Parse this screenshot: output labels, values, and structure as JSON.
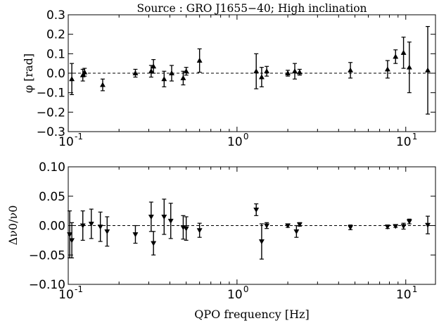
{
  "chart_data": [
    {
      "type": "scatter",
      "title": "Source$:$ GRO J1655$-$40; High inclination",
      "title_text": "Source : GRO J1655−40; High inclination",
      "ylabel": "φ [rad]",
      "xlabel": "",
      "x_scale": "log",
      "xlim": [
        0.1,
        15
      ],
      "ylim": [
        -0.3,
        0.3
      ],
      "x_ticks": [
        0.1,
        1,
        10
      ],
      "x_tick_labels": [
        "10",
        "10",
        "10"
      ],
      "x_tick_exponents": [
        "-1",
        "0",
        "1"
      ],
      "y_ticks": [
        -0.3,
        -0.2,
        -0.1,
        0.0,
        0.1,
        0.2,
        0.3
      ],
      "y_tick_labels": [
        "−0.3",
        "−0.2",
        "−0.1",
        "0.0",
        "0.1",
        "0.2",
        "0.3"
      ],
      "marker": "triangle-up",
      "reference_line": 0,
      "series": [
        {
          "points": [
            {
              "x": 0.105,
              "y": -0.03,
              "err": 0.08
            },
            {
              "x": 0.122,
              "y": -0.01,
              "err": 0.03
            },
            {
              "x": 0.125,
              "y": 0.005,
              "err": 0.02
            },
            {
              "x": 0.16,
              "y": -0.06,
              "err": 0.03
            },
            {
              "x": 0.25,
              "y": 0.0,
              "err": 0.02
            },
            {
              "x": 0.31,
              "y": 0.01,
              "err": 0.03
            },
            {
              "x": 0.32,
              "y": 0.035,
              "err": 0.035
            },
            {
              "x": 0.37,
              "y": -0.03,
              "err": 0.04
            },
            {
              "x": 0.41,
              "y": 0.0,
              "err": 0.04
            },
            {
              "x": 0.48,
              "y": -0.025,
              "err": 0.035
            },
            {
              "x": 0.5,
              "y": 0.01,
              "err": 0.02
            },
            {
              "x": 0.6,
              "y": 0.065,
              "err": 0.06
            },
            {
              "x": 1.3,
              "y": 0.01,
              "err": 0.09
            },
            {
              "x": 1.4,
              "y": -0.02,
              "err": 0.05
            },
            {
              "x": 1.5,
              "y": 0.01,
              "err": 0.025
            },
            {
              "x": 2.0,
              "y": 0.0,
              "err": 0.015
            },
            {
              "x": 2.2,
              "y": 0.01,
              "err": 0.04
            },
            {
              "x": 2.35,
              "y": 0.005,
              "err": 0.015
            },
            {
              "x": 4.7,
              "y": 0.015,
              "err": 0.04
            },
            {
              "x": 7.8,
              "y": 0.02,
              "err": 0.045
            },
            {
              "x": 8.7,
              "y": 0.085,
              "err": 0.035
            },
            {
              "x": 9.7,
              "y": 0.105,
              "err": 0.08
            },
            {
              "x": 10.5,
              "y": 0.03,
              "err": 0.13
            },
            {
              "x": 13.5,
              "y": 0.015,
              "err": 0.225
            }
          ]
        }
      ]
    },
    {
      "type": "scatter",
      "title": "",
      "ylabel": "Δν0/ν0",
      "xlabel": "QPO frequency [Hz]",
      "x_scale": "log",
      "xlim": [
        0.1,
        15
      ],
      "ylim": [
        -0.1,
        0.1
      ],
      "x_ticks": [
        0.1,
        1,
        10
      ],
      "x_tick_labels": [
        "10",
        "10",
        "10"
      ],
      "x_tick_exponents": [
        "-1",
        "0",
        "1"
      ],
      "y_ticks": [
        -0.1,
        -0.05,
        0.0,
        0.05,
        0.1
      ],
      "y_tick_labels": [
        "−0.10",
        "−0.05",
        "0.00",
        "0.05",
        "0.10"
      ],
      "marker": "triangle-down",
      "reference_line": 0,
      "series": [
        {
          "points": [
            {
              "x": 0.102,
              "y": -0.015,
              "err": 0.04
            },
            {
              "x": 0.105,
              "y": -0.025,
              "err": 0.03
            },
            {
              "x": 0.122,
              "y": 0.0,
              "err": 0.025
            },
            {
              "x": 0.137,
              "y": 0.003,
              "err": 0.025
            },
            {
              "x": 0.155,
              "y": -0.002,
              "err": 0.025
            },
            {
              "x": 0.17,
              "y": -0.01,
              "err": 0.025
            },
            {
              "x": 0.25,
              "y": -0.015,
              "err": 0.015
            },
            {
              "x": 0.31,
              "y": 0.015,
              "err": 0.025
            },
            {
              "x": 0.32,
              "y": -0.03,
              "err": 0.02
            },
            {
              "x": 0.37,
              "y": 0.015,
              "err": 0.03
            },
            {
              "x": 0.405,
              "y": 0.008,
              "err": 0.03
            },
            {
              "x": 0.48,
              "y": -0.003,
              "err": 0.02
            },
            {
              "x": 0.5,
              "y": -0.005,
              "err": 0.02
            },
            {
              "x": 0.6,
              "y": -0.008,
              "err": 0.012
            },
            {
              "x": 1.3,
              "y": 0.027,
              "err": 0.01
            },
            {
              "x": 1.4,
              "y": -0.027,
              "err": 0.03
            },
            {
              "x": 1.5,
              "y": 0.0,
              "err": 0.005
            },
            {
              "x": 2.0,
              "y": 0.0,
              "err": 0.003
            },
            {
              "x": 2.25,
              "y": -0.01,
              "err": 0.01
            },
            {
              "x": 2.35,
              "y": 0.002,
              "err": 0.003
            },
            {
              "x": 4.7,
              "y": -0.003,
              "err": 0.004
            },
            {
              "x": 7.8,
              "y": -0.002,
              "err": 0.003
            },
            {
              "x": 8.7,
              "y": -0.001,
              "err": 0.002
            },
            {
              "x": 9.7,
              "y": -0.001,
              "err": 0.005
            },
            {
              "x": 10.5,
              "y": 0.007,
              "err": 0.004
            },
            {
              "x": 13.5,
              "y": 0.001,
              "err": 0.015
            }
          ]
        }
      ]
    }
  ]
}
